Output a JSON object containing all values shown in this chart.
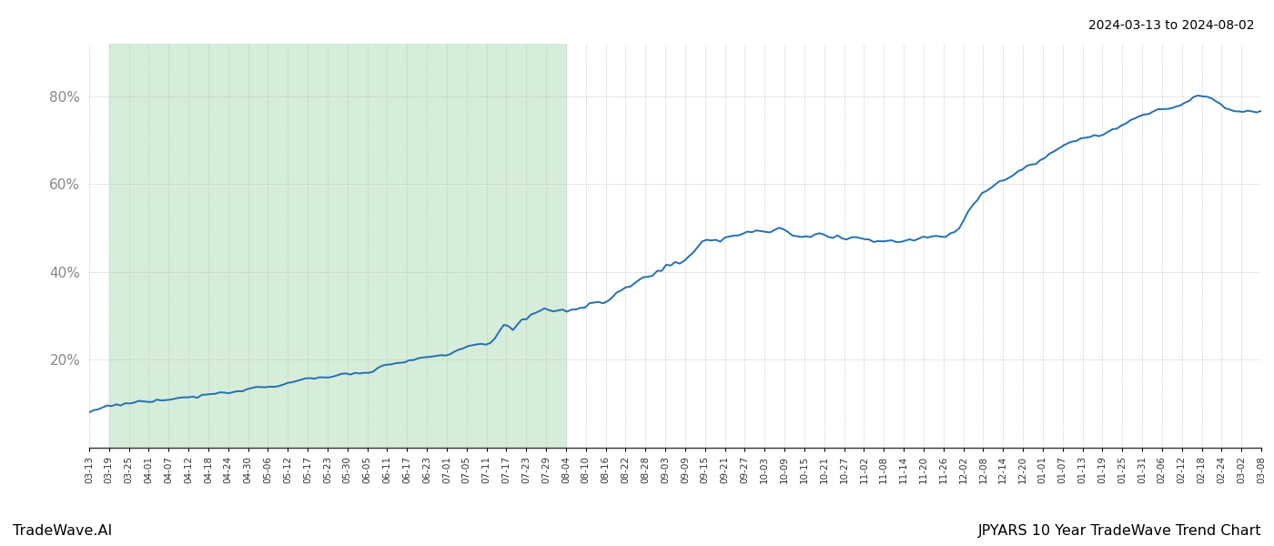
{
  "title_top_right": "2024-03-13 to 2024-08-02",
  "footer_left": "TradeWave.AI",
  "footer_right": "JPYARS 10 Year TradeWave Trend Chart",
  "line_color": "#2470b3",
  "shaded_region_color": "#d6edd9",
  "background_color": "#ffffff",
  "grid_color": "#bbbbbb",
  "grid_style": "dotted",
  "ytick_color": "#888888",
  "yticks": [
    0.2,
    0.4,
    0.6,
    0.8
  ],
  "ytick_labels": [
    "20%",
    "40%",
    "60%",
    "80%"
  ],
  "ylim": [
    0.0,
    0.92
  ],
  "line_width": 1.4,
  "figsize": [
    14.0,
    6.0
  ],
  "dpi": 100,
  "x_labels": [
    "03-13",
    "03-19",
    "03-25",
    "04-01",
    "04-07",
    "04-12",
    "04-18",
    "04-24",
    "04-30",
    "05-06",
    "05-12",
    "05-17",
    "05-23",
    "05-30",
    "06-05",
    "06-11",
    "06-17",
    "06-23",
    "07-01",
    "07-05",
    "07-11",
    "07-17",
    "07-23",
    "07-29",
    "08-04",
    "08-10",
    "08-16",
    "08-22",
    "08-28",
    "09-03",
    "09-09",
    "09-15",
    "09-21",
    "09-27",
    "10-03",
    "10-09",
    "10-15",
    "10-21",
    "10-27",
    "11-02",
    "11-08",
    "11-14",
    "11-20",
    "11-26",
    "12-02",
    "12-08",
    "12-14",
    "12-20",
    "01-01",
    "01-07",
    "01-13",
    "01-19",
    "01-25",
    "01-31",
    "02-06",
    "02-12",
    "02-18",
    "02-24",
    "03-02",
    "03-08"
  ],
  "shaded_label_start": "03-19",
  "shaded_label_end": "08-04",
  "waypoints": [
    [
      0,
      0.08
    ],
    [
      3,
      0.09
    ],
    [
      6,
      0.1
    ],
    [
      10,
      0.105
    ],
    [
      14,
      0.11
    ],
    [
      18,
      0.115
    ],
    [
      22,
      0.125
    ],
    [
      26,
      0.135
    ],
    [
      30,
      0.145
    ],
    [
      35,
      0.155
    ],
    [
      40,
      0.165
    ],
    [
      45,
      0.175
    ],
    [
      50,
      0.19
    ],
    [
      55,
      0.195
    ],
    [
      60,
      0.2
    ],
    [
      64,
      0.205
    ],
    [
      68,
      0.21
    ],
    [
      72,
      0.215
    ],
    [
      76,
      0.22
    ],
    [
      80,
      0.225
    ],
    [
      84,
      0.235
    ],
    [
      88,
      0.255
    ],
    [
      90,
      0.275
    ],
    [
      92,
      0.31
    ],
    [
      94,
      0.295
    ],
    [
      96,
      0.305
    ],
    [
      98,
      0.31
    ],
    [
      100,
      0.32
    ],
    [
      102,
      0.325
    ],
    [
      104,
      0.33
    ],
    [
      106,
      0.335
    ],
    [
      108,
      0.34
    ],
    [
      110,
      0.345
    ],
    [
      112,
      0.355
    ],
    [
      114,
      0.365
    ],
    [
      116,
      0.375
    ],
    [
      118,
      0.385
    ],
    [
      120,
      0.395
    ],
    [
      122,
      0.405
    ],
    [
      124,
      0.415
    ],
    [
      126,
      0.43
    ],
    [
      128,
      0.445
    ],
    [
      130,
      0.455
    ],
    [
      132,
      0.465
    ],
    [
      134,
      0.475
    ],
    [
      136,
      0.485
    ],
    [
      138,
      0.495
    ],
    [
      140,
      0.5
    ],
    [
      142,
      0.515
    ],
    [
      144,
      0.525
    ],
    [
      146,
      0.535
    ],
    [
      148,
      0.53
    ],
    [
      150,
      0.525
    ],
    [
      152,
      0.52
    ],
    [
      154,
      0.515
    ],
    [
      156,
      0.5
    ],
    [
      158,
      0.495
    ],
    [
      160,
      0.49
    ],
    [
      162,
      0.485
    ],
    [
      164,
      0.48
    ],
    [
      166,
      0.47
    ],
    [
      168,
      0.46
    ],
    [
      170,
      0.455
    ],
    [
      172,
      0.45
    ],
    [
      174,
      0.452
    ],
    [
      176,
      0.455
    ],
    [
      178,
      0.455
    ],
    [
      180,
      0.46
    ],
    [
      182,
      0.46
    ],
    [
      184,
      0.465
    ],
    [
      186,
      0.47
    ],
    [
      188,
      0.475
    ],
    [
      190,
      0.48
    ],
    [
      192,
      0.49
    ],
    [
      194,
      0.52
    ],
    [
      196,
      0.56
    ],
    [
      198,
      0.595
    ],
    [
      200,
      0.61
    ],
    [
      202,
      0.625
    ],
    [
      204,
      0.635
    ],
    [
      206,
      0.645
    ],
    [
      208,
      0.655
    ],
    [
      210,
      0.665
    ],
    [
      212,
      0.68
    ],
    [
      214,
      0.695
    ],
    [
      216,
      0.705
    ],
    [
      218,
      0.715
    ],
    [
      220,
      0.725
    ],
    [
      222,
      0.73
    ],
    [
      224,
      0.735
    ],
    [
      226,
      0.745
    ],
    [
      228,
      0.755
    ],
    [
      230,
      0.765
    ],
    [
      232,
      0.77
    ],
    [
      234,
      0.775
    ],
    [
      236,
      0.785
    ],
    [
      238,
      0.795
    ],
    [
      240,
      0.8
    ],
    [
      242,
      0.81
    ],
    [
      244,
      0.825
    ],
    [
      246,
      0.835
    ],
    [
      248,
      0.835
    ],
    [
      250,
      0.83
    ],
    [
      252,
      0.82
    ],
    [
      254,
      0.815
    ],
    [
      256,
      0.812
    ],
    [
      258,
      0.812
    ],
    [
      260,
      0.81
    ]
  ]
}
